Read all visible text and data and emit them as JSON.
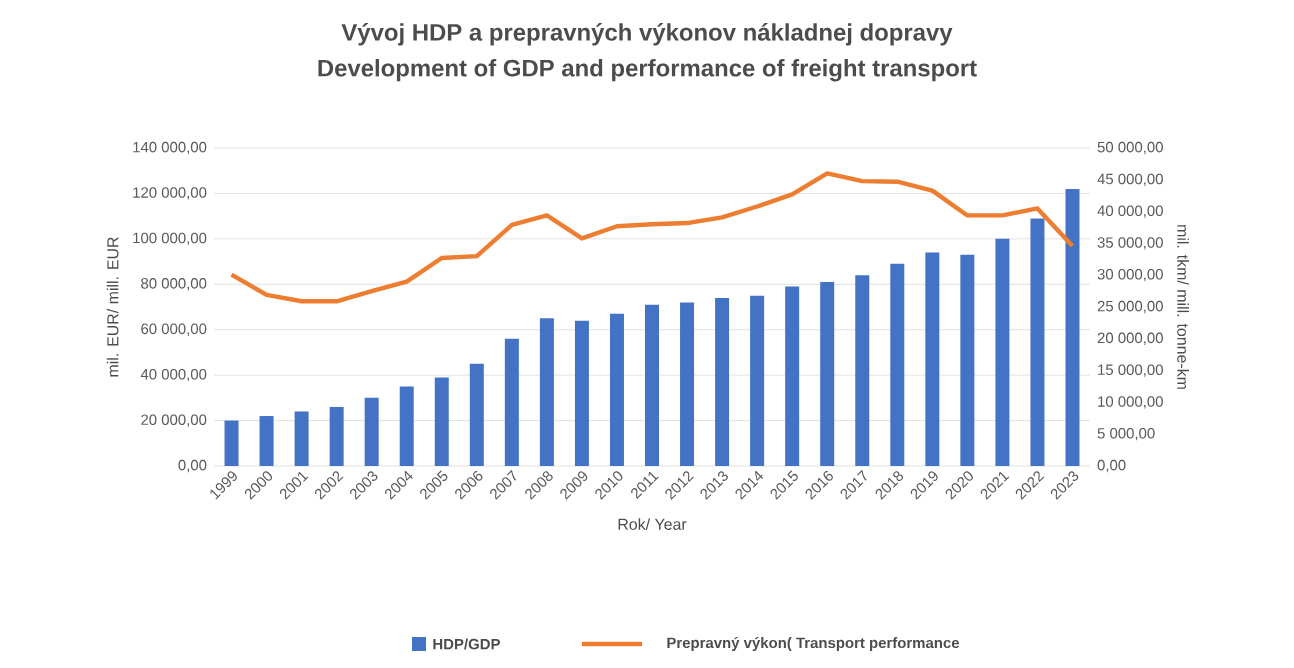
{
  "chart_data": {
    "type": "bar",
    "title": "Vývoj HDP a prepravných výkonov nákladnej dopravy",
    "subtitle": "Development of GDP and performance of freight transport",
    "xlabel": "Rok/ Year",
    "ylabel": "mil. EUR/ mill. EUR",
    "y2label": "mil. tkm/ mill. tonne-km",
    "categories": [
      "1999",
      "2000",
      "2001",
      "2002",
      "2003",
      "2004",
      "2005",
      "2006",
      "2007",
      "2008",
      "2009",
      "2010",
      "2011",
      "2012",
      "2013",
      "2014",
      "2015",
      "2016",
      "2017",
      "2018",
      "2019",
      "2020",
      "2021",
      "2022",
      "2023"
    ],
    "series": [
      {
        "name": "HDP/GDP",
        "color": "#4472c4",
        "values": [
          20000,
          22000,
          24000,
          26000,
          30000,
          35000,
          39000,
          45000,
          56000,
          65000,
          64000,
          67000,
          71000,
          72000,
          74000,
          75000,
          79000,
          81000,
          84000,
          89000,
          94000,
          93000,
          100000,
          109000,
          122000
        ]
      },
      {
        "name": "Prepravný výkon( Transport performance",
        "type": "line",
        "axis": "y2",
        "color": "#ed7d31",
        "values": [
          30100,
          26900,
          25900,
          25900,
          27500,
          29000,
          32700,
          33000,
          37900,
          39400,
          35800,
          37700,
          38000,
          38200,
          39100,
          40800,
          42700,
          46000,
          44800,
          44700,
          43300,
          39400,
          39400,
          40500,
          34600
        ]
      }
    ],
    "ylim": [
      0,
      140000
    ],
    "yticks": [
      {
        "value": 0,
        "label": "0,00"
      },
      {
        "value": 20000,
        "label": "20 000,00"
      },
      {
        "value": 40000,
        "label": "40 000,00"
      },
      {
        "value": 60000,
        "label": "60 000,00"
      },
      {
        "value": 80000,
        "label": "80 000,00"
      },
      {
        "value": 100000,
        "label": "100 000,00"
      },
      {
        "value": 120000,
        "label": "120 000,00"
      },
      {
        "value": 140000,
        "label": "140 000,00"
      }
    ],
    "y2lim": [
      0,
      50000
    ],
    "y2ticks": [
      {
        "value": 0,
        "label": "0,00"
      },
      {
        "value": 5000,
        "label": "5 000,00"
      },
      {
        "value": 10000,
        "label": "10 000,00"
      },
      {
        "value": 15000,
        "label": "15 000,00"
      },
      {
        "value": 20000,
        "label": "20 000,00"
      },
      {
        "value": 25000,
        "label": "25 000,00"
      },
      {
        "value": 30000,
        "label": "30 000,00"
      },
      {
        "value": 35000,
        "label": "35 000,00"
      },
      {
        "value": 40000,
        "label": "40 000,00"
      },
      {
        "value": 45000,
        "label": "45 000,00"
      },
      {
        "value": 50000,
        "label": "50 000,00"
      }
    ],
    "grid": "y",
    "legend": "bottom"
  }
}
